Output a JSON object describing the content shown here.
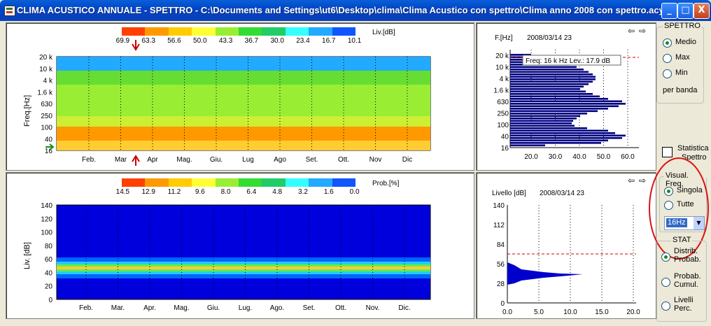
{
  "window": {
    "title": "CLIMA ACUSTICO ANNUALE  - SPETTRO - C:\\Documents and Settings\\ut6\\Desktop\\clima\\Clima Acustico con spettro\\Clima anno 2008 con spettro.acy",
    "minimize": "_",
    "maximize": "□",
    "close": "X"
  },
  "spectrogram": {
    "scale_title": "Liv.[dB]",
    "scale_values": [
      "69.9",
      "63.3",
      "56.6",
      "50.0",
      "43.3",
      "36.7",
      "30.0",
      "23.4",
      "16.7",
      "10.1"
    ],
    "scale_colors": [
      "#ff4000",
      "#ff9900",
      "#ffcc00",
      "#ffff33",
      "#99ee33",
      "#33dd33",
      "#22cc66",
      "#33ffff",
      "#22aaff",
      "#1155ff"
    ],
    "ylabel": "Freq.[Hz]",
    "yticks": [
      "20 k",
      "10 k",
      "4 k",
      "1.6 k",
      "630",
      "250",
      "100",
      "40",
      "16"
    ],
    "months": [
      "Feb.",
      "Mar",
      "Apr",
      "Mag.",
      "Giu.",
      "Lug",
      "Ago",
      "Set.",
      "Ott.",
      "Nov",
      "Dic"
    ]
  },
  "probability": {
    "scale_title": "Prob.[%]",
    "scale_values": [
      "14.5",
      "12.9",
      "11.2",
      "9.6",
      "8.0",
      "6.4",
      "4.8",
      "3.2",
      "1.6",
      "0.0"
    ],
    "ylabel": "Liv. [dB]",
    "yticks": [
      "140",
      "120",
      "100",
      "80",
      "60",
      "40",
      "20",
      "0"
    ],
    "months": [
      "Feb.",
      "Mar.",
      "Apr.",
      "Mag.",
      "Giu.",
      "Lug.",
      "Ago.",
      "Set.",
      "Ott.",
      "Nov.",
      "Dic."
    ]
  },
  "spectrum_bar": {
    "ylabel": "F.[Hz]",
    "date": "2008/03/14 23",
    "tooltip": "Freq: 16 k Hz Lev.: 17.9 dB",
    "yticks": [
      "20 k",
      "10 k",
      "4 k",
      "1.6 k",
      "630",
      "250",
      "100",
      "40",
      "16"
    ],
    "xticks": [
      "20.0",
      "30.0",
      "40.0",
      "50.0",
      "60.0"
    ]
  },
  "level_dist": {
    "ylabel": "Livello [dB]",
    "date": "2008/03/14 23",
    "yticks": [
      "140",
      "112",
      "84",
      "56",
      "28",
      "0"
    ],
    "xticks": [
      "0.0",
      "5.0",
      "10.0",
      "15.0",
      "20.0"
    ]
  },
  "spettro_group": {
    "title": "SPETTRO",
    "options": [
      "Medio",
      "Max",
      "Min"
    ],
    "selected": 0,
    "footer": "per banda"
  },
  "statistica": {
    "line1": "Statistica",
    "line2": "Spettro"
  },
  "visual_group": {
    "title": "Visual. Freq.",
    "options": [
      "Singola",
      "Tutte"
    ],
    "selected": 0,
    "select_value": "16Hz"
  },
  "stat_group": {
    "title": "STAT",
    "options": [
      [
        "Distrib.",
        "Probab."
      ],
      [
        "Probab.",
        "Cumul."
      ],
      [
        "Livelli",
        "Perc."
      ]
    ],
    "selected": 0
  },
  "colors": {
    "plot_bg": "#0000dd",
    "bar_color": "#000080",
    "annotation_red": "#cc0000"
  }
}
